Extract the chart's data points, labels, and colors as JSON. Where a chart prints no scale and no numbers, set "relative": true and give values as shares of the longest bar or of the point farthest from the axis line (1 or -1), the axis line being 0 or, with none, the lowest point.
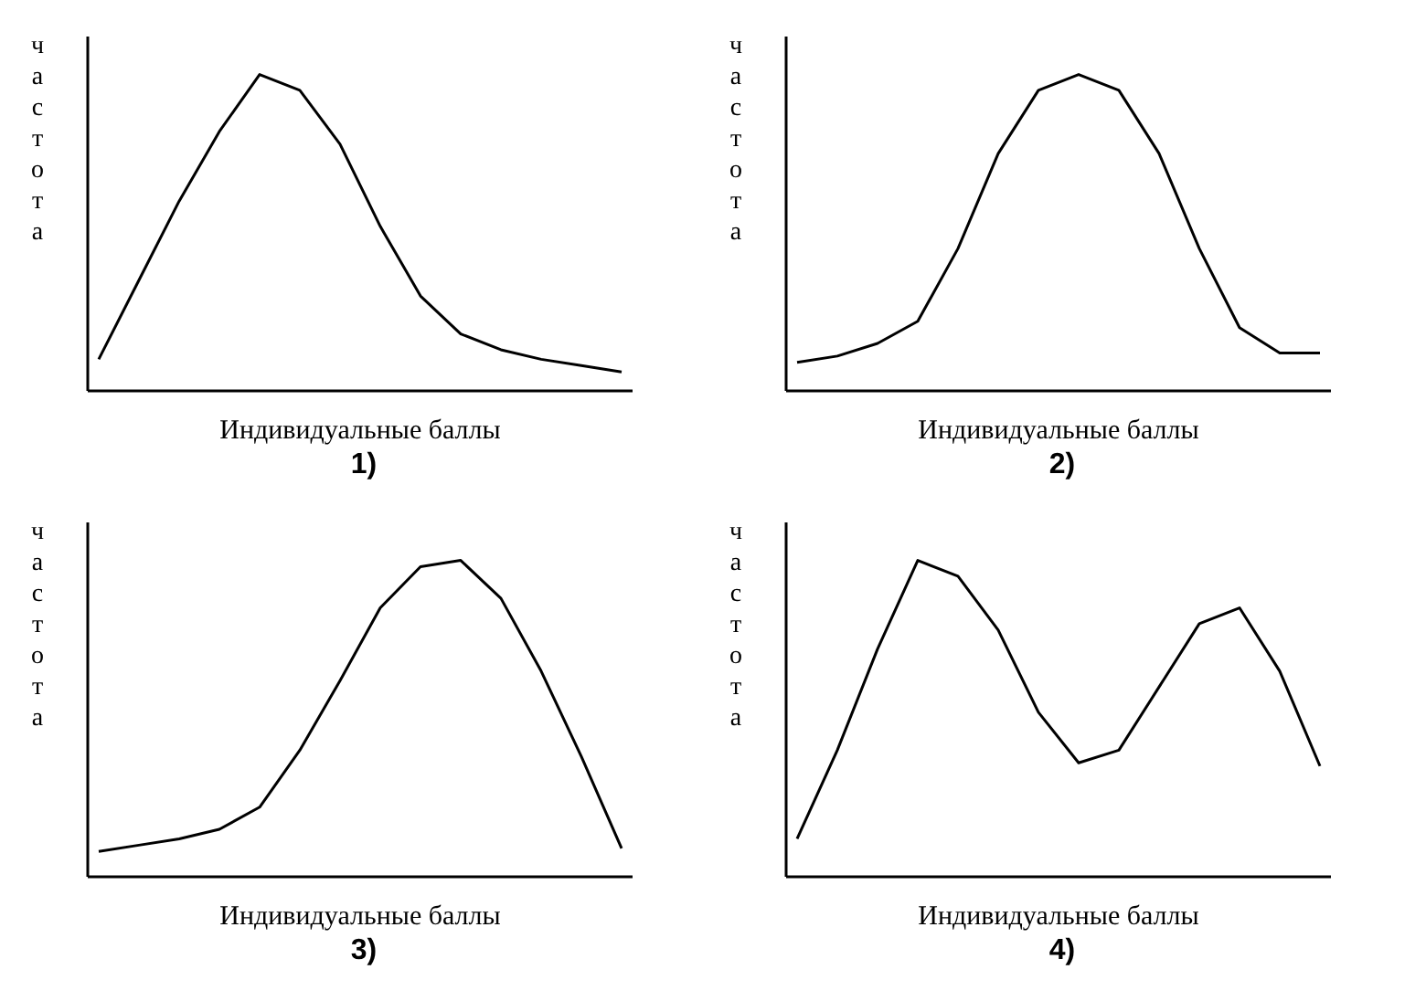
{
  "chart_data": [
    {
      "type": "line",
      "title": "1)",
      "xlabel": "Индивидуальные баллы",
      "ylabel": "частота",
      "relative": true,
      "categories": [
        null,
        null,
        null,
        null,
        null,
        null,
        null,
        null,
        null,
        null,
        null,
        null,
        null,
        null
      ],
      "series": [
        {
          "color": "#000000",
          "values": [
            0.1,
            0.35,
            0.6,
            0.82,
            1,
            0.95,
            0.78,
            0.52,
            0.3,
            0.18,
            0.13,
            0.1,
            0.08,
            0.06
          ]
        }
      ]
    },
    {
      "type": "line",
      "title": "2)",
      "xlabel": "Индивидуальные баллы",
      "ylabel": "частота",
      "relative": true,
      "categories": [
        null,
        null,
        null,
        null,
        null,
        null,
        null,
        null,
        null,
        null,
        null,
        null,
        null,
        null
      ],
      "series": [
        {
          "color": "#000000",
          "values": [
            0.09,
            0.11,
            0.15,
            0.22,
            0.45,
            0.75,
            0.95,
            1,
            0.95,
            0.75,
            0.45,
            0.2,
            0.12,
            0.12
          ]
        }
      ]
    },
    {
      "type": "line",
      "title": "3)",
      "xlabel": "Индивидуальные баллы",
      "ylabel": "частота",
      "relative": true,
      "categories": [
        null,
        null,
        null,
        null,
        null,
        null,
        null,
        null,
        null,
        null,
        null,
        null,
        null,
        null
      ],
      "series": [
        {
          "color": "#000000",
          "values": [
            0.08,
            0.1,
            0.12,
            0.15,
            0.22,
            0.4,
            0.62,
            0.85,
            0.98,
            1,
            0.88,
            0.65,
            0.38,
            0.09
          ]
        }
      ]
    },
    {
      "type": "line",
      "title": "4)",
      "xlabel": "Индивидуальные баллы",
      "ylabel": "частота",
      "relative": true,
      "categories": [
        null,
        null,
        null,
        null,
        null,
        null,
        null,
        null,
        null,
        null,
        null,
        null,
        null,
        null
      ],
      "series": [
        {
          "color": "#000000",
          "values": [
            0.12,
            0.4,
            0.72,
            1,
            0.95,
            0.78,
            0.52,
            0.36,
            0.4,
            0.6,
            0.8,
            0.85,
            0.65,
            0.35
          ]
        }
      ]
    }
  ]
}
